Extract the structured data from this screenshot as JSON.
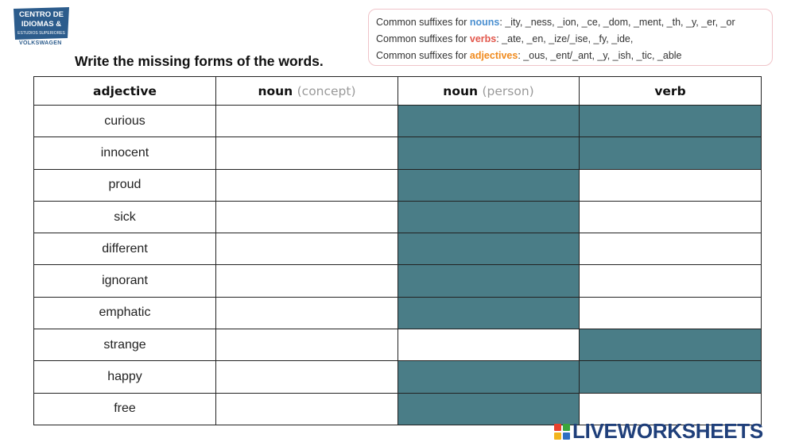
{
  "logo": {
    "line1": "CENTRO DE",
    "line2": "IDIOMAS &",
    "line3": "ESTUDIOS SUPERIORES",
    "sub": "VOLKSWAGEN",
    "color": "#2c5c8c"
  },
  "suffixes": [
    {
      "prefix": "Common suffixes for ",
      "keyword": "nouns",
      "rest": ": _ity, _ness, _ion, _ce, _dom, _ment, _th, _y, _er, _or",
      "color": "#4a8fd0"
    },
    {
      "prefix": "Common suffixes for ",
      "keyword": "verbs",
      "rest": ": _ate, _en, _ize/_ise, _fy, _ide,",
      "color": "#e2574c"
    },
    {
      "prefix": "Common suffixes for ",
      "keyword": "adjectives",
      "rest": ": _ous, _ent/_ant, _y, _ish, _tic, _able",
      "color": "#f08a1d"
    }
  ],
  "instruction": "Write the missing forms of the words.",
  "table": {
    "headers": [
      {
        "main": "adjective",
        "muted": ""
      },
      {
        "main": "noun",
        "muted": "(concept)"
      },
      {
        "main": "noun",
        "muted": "(person)"
      },
      {
        "main": "verb",
        "muted": ""
      }
    ],
    "shade_color": "#4a7d87",
    "rows": [
      {
        "word": "curious",
        "shaded": [
          false,
          true,
          true
        ]
      },
      {
        "word": "innocent",
        "shaded": [
          false,
          true,
          true
        ]
      },
      {
        "word": "proud",
        "shaded": [
          false,
          true,
          false
        ]
      },
      {
        "word": "sick",
        "shaded": [
          false,
          true,
          false
        ]
      },
      {
        "word": "different",
        "shaded": [
          false,
          true,
          false
        ]
      },
      {
        "word": "ignorant",
        "shaded": [
          false,
          true,
          false
        ]
      },
      {
        "word": "emphatic",
        "shaded": [
          false,
          true,
          false
        ]
      },
      {
        "word": "strange",
        "shaded": [
          false,
          false,
          true
        ]
      },
      {
        "word": "happy",
        "shaded": [
          false,
          true,
          true
        ]
      },
      {
        "word": "free",
        "shaded": [
          false,
          true,
          false
        ]
      }
    ]
  },
  "watermark": {
    "text": "LIVEWORKSHEETS",
    "block_colors": [
      "#e8412c",
      "#3ba53b",
      "#f2b51d",
      "#2f6fc2"
    ]
  }
}
